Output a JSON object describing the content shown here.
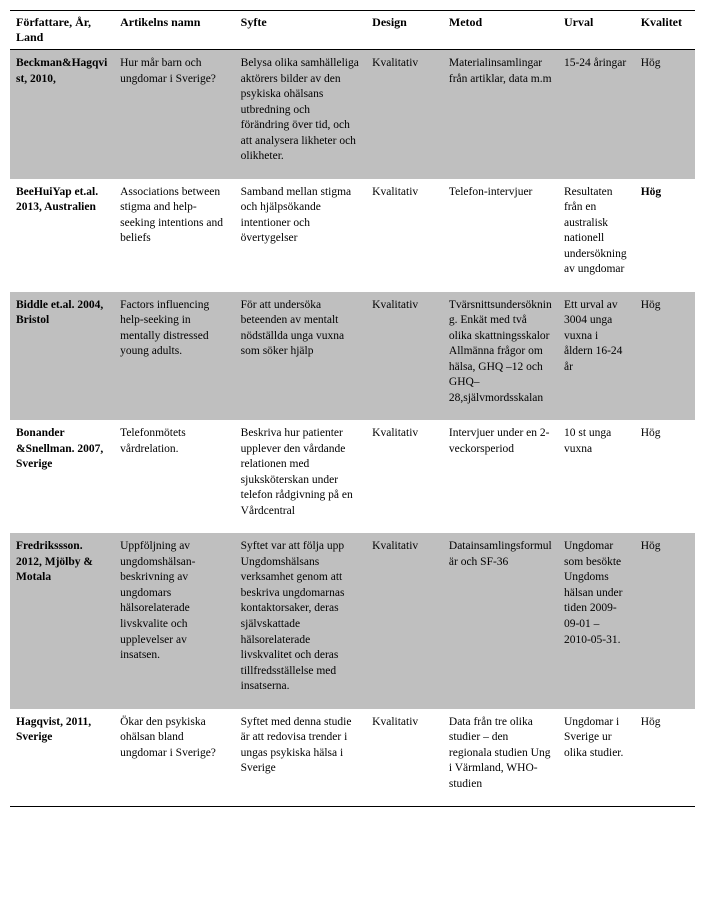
{
  "table": {
    "columns": [
      "Författare, År, Land",
      "Artikelns namn",
      "Syfte",
      "Design",
      "Metod",
      "Urval",
      "Kvalitet"
    ],
    "rows": [
      {
        "shaded": true,
        "quality_bold": false,
        "author": "Beckman&Hagqvist, 2010,",
        "title": "Hur mår barn och ungdomar i Sverige?",
        "purpose": "Belysa olika samhälleliga aktörers bilder av den psykiska ohälsans utbredning och förändring över tid, och att analysera likheter och olikheter.",
        "design": "Kvalitativ",
        "method": "Materialinsamlingar från artiklar, data m.m",
        "sample": "15-24 åringar",
        "quality": "Hög"
      },
      {
        "shaded": false,
        "quality_bold": true,
        "author": "BeeHuiYap et.al. 2013, Australien",
        "title": "Associations between stigma and help-seeking intentions and beliefs",
        "purpose": "Samband mellan stigma och hjälpsökande intentioner och övertygelser",
        "design": "Kvalitativ",
        "method": "Telefon-intervjuer",
        "sample": "Resultaten från en australisk nationell undersökning av ungdomar",
        "quality": "Hög"
      },
      {
        "shaded": true,
        "quality_bold": false,
        "author": "Biddle et.al. 2004, Bristol",
        "title": "Factors influencing help-seeking in mentally distressed young adults.",
        "purpose": "För att undersöka beteenden av mentalt nödställda unga vuxna som söker hjälp",
        "design": "Kvalitativ",
        "method": "Tvärsnittsundersökning. Enkät med två olika skattningsskalor Allmänna frågor om hälsa, GHQ –12 och GHQ–28,självmordsskalan",
        "sample": "Ett urval av 3004 unga vuxna i åldern 16-24 år",
        "quality": "Hög"
      },
      {
        "shaded": false,
        "quality_bold": false,
        "author": "Bonander &Snellman. 2007, Sverige",
        "title": "Telefonmötets vårdrelation.",
        "purpose": "Beskriva hur patienter upplever den vårdande relationen med sjuksköterskan under telefon rådgivning på en Vårdcentral",
        "design": "Kvalitativ",
        "method": "Intervjuer under en 2-veckorsperiod",
        "sample": "10 st unga vuxna",
        "quality": "Hög"
      },
      {
        "shaded": true,
        "quality_bold": false,
        "author": "Fredrikssson. 2012, Mjölby & Motala",
        "title": "Uppföljning av ungdomshälsan- beskrivning av ungdomars hälsorelaterade livskvalite och upplevelser av insatsen.",
        "purpose": "Syftet var att följa upp Ungdomshälsans verksamhet genom att beskriva ungdomarnas kontaktorsaker, deras självskattade hälsorelaterade livskvalitet och deras tillfredsställelse med insatserna.",
        "design": "Kvalitativ",
        "method": "Datainsamlingsformulär och SF-36",
        "sample": "Ungdomar som besökte Ungdoms hälsan under tiden 2009-09-01 – 2010-05-31.",
        "quality": "Hög"
      },
      {
        "shaded": false,
        "quality_bold": false,
        "author": "Hagqvist, 2011, Sverige",
        "title": "Ökar den psykiska ohälsan bland ungdomar i Sverige?",
        "purpose": "Syftet med denna studie är att redovisa trender i ungas psykiska hälsa i Sverige",
        "design": "Kvalitativ",
        "method": "Data från tre olika studier – den regionala studien Ung i Värmland, WHO-studien",
        "sample": "Ungdomar i Sverige ur olika studier.",
        "quality": "Hög"
      }
    ]
  }
}
